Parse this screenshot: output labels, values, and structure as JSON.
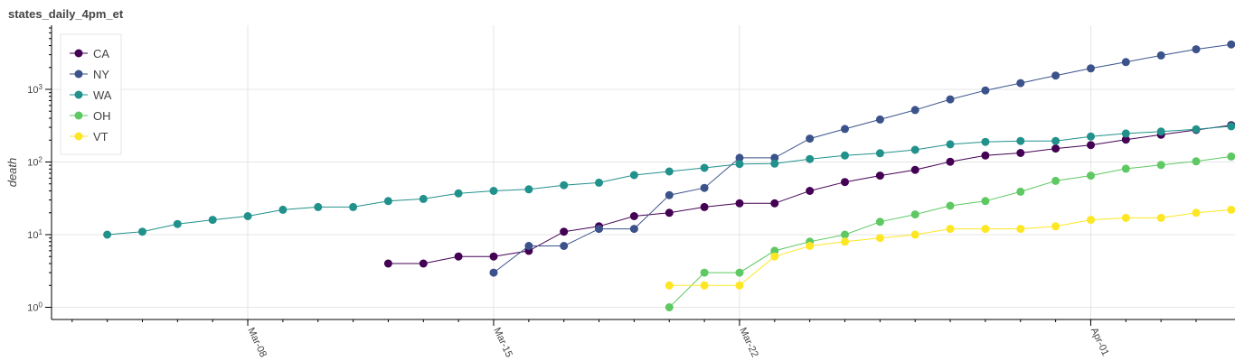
{
  "chart_data": {
    "type": "line",
    "title": "states_daily_4pm_et",
    "xlabel": "",
    "ylabel": "death",
    "y_scale": "log",
    "grid": true,
    "legend_position": "top-left",
    "x_ticks": [
      "2020-03-08",
      "2020-03-15",
      "2020-03-22",
      "2020-04-01"
    ],
    "x_tick_labels": [
      "Mar-08",
      "Mar-15",
      "Mar-22",
      "Apr-01"
    ],
    "y_tick_labels": [
      {
        "value": 1,
        "base": "10",
        "exp": "0"
      },
      {
        "value": 10,
        "base": "10",
        "exp": "1"
      },
      {
        "value": 100,
        "base": "10",
        "exp": "2"
      },
      {
        "value": 1000,
        "base": "10",
        "exp": "3"
      }
    ],
    "series": [
      {
        "name": "CA",
        "color": "#440154",
        "start": "2020-03-12",
        "values": [
          4,
          4,
          5,
          5,
          6,
          11,
          13,
          18,
          20,
          24,
          27,
          27,
          40,
          53,
          65,
          78,
          101,
          123,
          133,
          153,
          171,
          203,
          237,
          276,
          321
        ]
      },
      {
        "name": "NY",
        "color": "#3b528b",
        "start": "2020-03-15",
        "values": [
          3,
          7,
          7,
          12,
          12,
          35,
          44,
          114,
          114,
          210,
          285,
          385,
          519,
          728,
          965,
          1218,
          1550,
          1941,
          2373,
          2935,
          3565,
          4159
        ]
      },
      {
        "name": "WA",
        "color": "#21918c",
        "start": "2020-03-04",
        "values": [
          10,
          11,
          14,
          16,
          18,
          22,
          24,
          24,
          29,
          31,
          37,
          40,
          42,
          48,
          52,
          66,
          74,
          83,
          94,
          95,
          110,
          123,
          132,
          147,
          175,
          189,
          195,
          195,
          224,
          247,
          262,
          282,
          310
        ]
      },
      {
        "name": "OH",
        "color": "#5ec962",
        "start": "2020-03-20",
        "values": [
          1,
          3,
          3,
          6,
          8,
          10,
          15,
          19,
          25,
          29,
          39,
          55,
          65,
          81,
          91,
          102,
          119
        ]
      },
      {
        "name": "VT",
        "color": "#fde725",
        "start": "2020-03-20",
        "values": [
          2,
          2,
          2,
          5,
          7,
          8,
          9,
          10,
          12,
          12,
          12,
          13,
          16,
          17,
          17,
          20,
          22
        ]
      }
    ]
  }
}
